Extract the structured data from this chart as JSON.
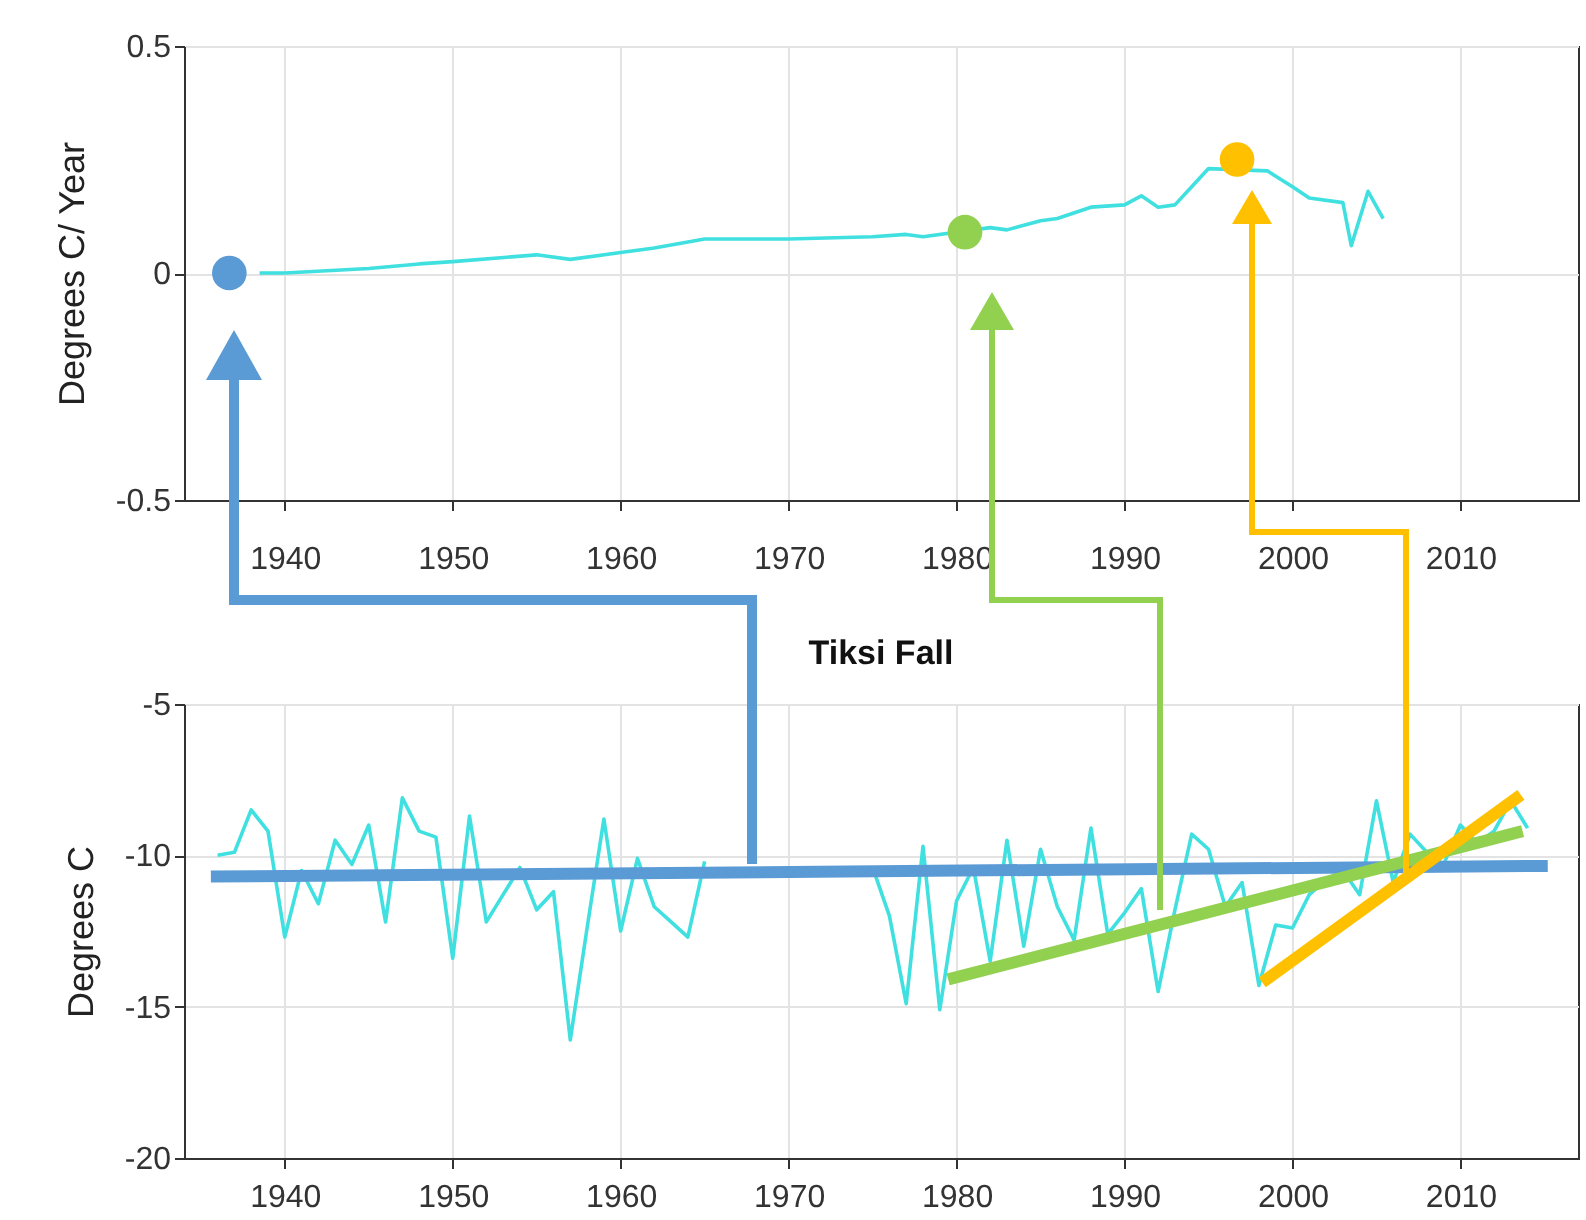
{
  "chart_data": [
    {
      "type": "line",
      "ylabel": "Degrees C/ Year",
      "xlim": [
        1934,
        2017
      ],
      "xticks": [
        1940,
        1950,
        1960,
        1970,
        1980,
        1990,
        2000,
        2010
      ],
      "ylim": [
        -0.5,
        0.5
      ],
      "yticks": [
        -0.5,
        0,
        0.5
      ],
      "grid": true,
      "series": [
        {
          "type": "line",
          "color": "#40e0e0",
          "x": [
            1938.5,
            1940,
            1945,
            1948,
            1950,
            1955,
            1957,
            1960,
            1962,
            1965,
            1970,
            1975,
            1977,
            1978,
            1982,
            1983,
            1985,
            1986,
            1988,
            1990,
            1991,
            1992,
            1993,
            1994,
            1995,
            1998.5,
            2000,
            2001,
            2003,
            2003.5,
            2004.5,
            2005.4
          ],
          "values": [
            0.0,
            0.0,
            0.01,
            0.02,
            0.025,
            0.04,
            0.03,
            0.045,
            0.055,
            0.075,
            0.075,
            0.08,
            0.085,
            0.08,
            0.1,
            0.095,
            0.115,
            0.12,
            0.145,
            0.15,
            0.17,
            0.145,
            0.15,
            0.19,
            0.23,
            0.225,
            0.19,
            0.165,
            0.155,
            0.06,
            0.18,
            0.12
          ]
        },
        {
          "type": "scatter",
          "marker": "circle",
          "x": [
            1936.7,
            1980.5,
            1996.7
          ],
          "values": [
            0.0,
            0.09,
            0.25
          ],
          "colors": [
            "#5b9bd5",
            "#92d050",
            "#ffc000"
          ]
        }
      ]
    },
    {
      "type": "line",
      "title": "Tiksi Fall",
      "ylabel": "Degrees C",
      "xlim": [
        1934,
        2017
      ],
      "xticks": [
        1940,
        1950,
        1960,
        1970,
        1980,
        1990,
        2000,
        2010
      ],
      "ylim": [
        -20,
        -5
      ],
      "yticks": [
        -20,
        -15,
        -10,
        -5
      ],
      "grid": true,
      "series": [
        {
          "type": "line",
          "color": "#40e0e0",
          "x": [
            1936,
            1937,
            1938,
            1939,
            1940,
            1941,
            1942,
            1943,
            1944,
            1945,
            1946,
            1947,
            1948,
            1949,
            1950,
            1951,
            1952,
            1953,
            1954,
            1955,
            1956,
            1957,
            1958,
            1959,
            1960,
            1961,
            1962,
            1963,
            1964,
            1965,
            1966,
            1974,
            1975,
            1976,
            1977,
            1978,
            1979,
            1980,
            1981,
            1982,
            1983,
            1984,
            1985,
            1986,
            1987,
            1988,
            1989,
            1990,
            1991,
            1992,
            1993,
            1994,
            1995,
            1996,
            1997,
            1998,
            1999,
            2000,
            2001,
            2002,
            2003,
            2004,
            2005,
            2006,
            2007,
            2008,
            2009,
            2010,
            2011,
            2012,
            2013,
            2014
          ],
          "values": [
            -10.0,
            -9.9,
            -8.5,
            -9.2,
            -12.7,
            -10.5,
            -11.6,
            -9.5,
            -10.3,
            -9.0,
            -12.2,
            -8.1,
            -9.2,
            -9.4,
            -13.4,
            -8.7,
            -12.2,
            -11.3,
            -10.4,
            -11.8,
            -11.2,
            -16.1,
            -12.4,
            -8.8,
            -12.5,
            -10.1,
            -11.7,
            -12.2,
            -12.7,
            -10.2,
            null,
            null,
            -10.4,
            -12.0,
            -14.9,
            -9.7,
            -15.1,
            -11.5,
            -10.4,
            -13.5,
            -9.5,
            -13.0,
            -9.8,
            -11.7,
            -12.8,
            -9.1,
            -12.6,
            -11.9,
            -11.1,
            -14.5,
            -11.8,
            -9.3,
            -9.8,
            -11.7,
            -10.9,
            -14.3,
            -12.3,
            -12.4,
            -11.3,
            -10.8,
            -10.5,
            -11.3,
            -8.2,
            -10.9,
            -9.3,
            -9.9,
            -10.3,
            -9.0,
            -9.6,
            -9.2,
            -8.2,
            -9.1
          ]
        },
        {
          "type": "line",
          "color": "#5b9bd5",
          "x": [
            1935.6,
            2015.2
          ],
          "values": [
            -10.7,
            -10.35
          ]
        },
        {
          "type": "line",
          "color": "#92d050",
          "x": [
            1979.5,
            2013.7
          ],
          "values": [
            -14.1,
            -9.2
          ]
        },
        {
          "type": "line",
          "color": "#ffc000",
          "x": [
            1998.2,
            2013.6
          ],
          "values": [
            -14.2,
            -8.0
          ]
        }
      ]
    }
  ]
}
